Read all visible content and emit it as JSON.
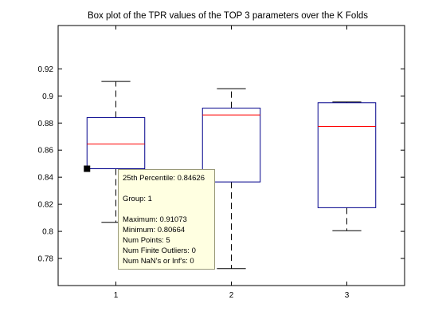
{
  "chart_data": {
    "type": "box",
    "title": "Box plot of the TPR values of the TOP 3 parameters over the K Folds",
    "xlabel": "",
    "ylabel": "",
    "categories": [
      "1",
      "2",
      "3"
    ],
    "ylim": [
      0.76,
      0.952
    ],
    "yticks": [
      0.78,
      0.8,
      0.82,
      0.84,
      0.86,
      0.88,
      0.9,
      0.92
    ],
    "ytick_labels": [
      "0.78",
      "0.8",
      "0.82",
      "0.84",
      "0.86",
      "0.88",
      "0.9",
      "0.92"
    ],
    "boxes": [
      {
        "group": "1",
        "min": 0.80664,
        "q1": 0.84626,
        "median": 0.8645,
        "q3": 0.884,
        "max": 0.91073
      },
      {
        "group": "2",
        "min": 0.7725,
        "q1": 0.8365,
        "median": 0.886,
        "q3": 0.891,
        "max": 0.9053
      },
      {
        "group": "3",
        "min": 0.8005,
        "q1": 0.8175,
        "median": 0.8775,
        "q3": 0.895,
        "max": 0.8955
      }
    ],
    "highlighted_point": {
      "group": "1",
      "value": 0.84626
    },
    "colors": {
      "box": "#00008b",
      "median": "#ff0000",
      "whisker": "#000000",
      "marker": "#000000"
    },
    "grid": false
  },
  "tooltip": {
    "line1": "25th Percentile: 0.84626",
    "line2": "Group: 1",
    "line3": "Maximum: 0.91073",
    "line4": "Minimum: 0.80664",
    "line5": "Num Points: 5",
    "line6": "Num Finite Outliers: 0",
    "line7": "Num NaN's or Inf's: 0"
  }
}
